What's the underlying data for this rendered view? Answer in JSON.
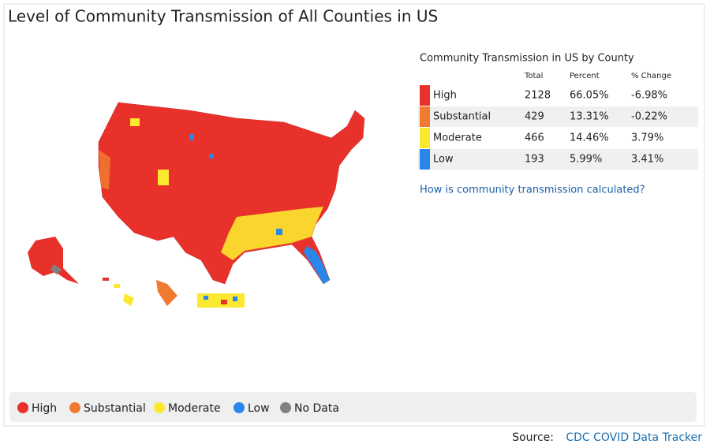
{
  "title": "Level of Community Transmission of All Counties in US",
  "table": {
    "title": "Community Transmission in US by County",
    "columns": [
      "Total",
      "Percent",
      "% Change"
    ],
    "rows": [
      [
        "High",
        "2128",
        "66.05%",
        "-6.98%"
      ],
      [
        "Substantial",
        "429",
        "13.31%",
        "-0.22%"
      ],
      [
        "Moderate",
        "466",
        "14.46%",
        "3.79%"
      ],
      [
        "Low",
        "193",
        "5.99%",
        "3.41%"
      ]
    ],
    "colors": [
      "#e8312a",
      "#f07a30",
      "#fce82e",
      "#2a86e8"
    ]
  },
  "link": "How is community transmission calculated?",
  "legend": [
    {
      "label": "High",
      "color": "#e8312a"
    },
    {
      "label": "Substantial",
      "color": "#f07a30"
    },
    {
      "label": "Moderate",
      "color": "#fce82e"
    },
    {
      "label": "Low",
      "color": "#2a86e8"
    },
    {
      "label": "No Data",
      "color": "#808080"
    }
  ],
  "source": {
    "label": "Source:",
    "link": "CDC COVID Data Tracker"
  }
}
